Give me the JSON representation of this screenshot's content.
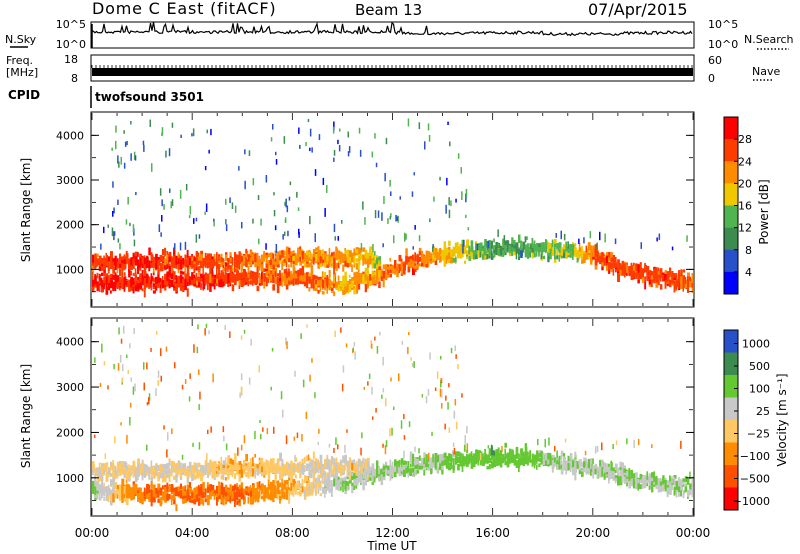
{
  "header": {
    "station": "Dome C East (fitACF)",
    "beam": "Beam 13",
    "date": "07/Apr/2015"
  },
  "nsky_panel": {
    "label": "N.Sky",
    "left_ticks": [
      "10^5",
      "10^0"
    ],
    "right_ticks": [
      "10^5",
      "10^0"
    ],
    "right_label": "N.Search"
  },
  "freq_panel": {
    "label_line1": "Freq.",
    "label_line2": "[MHz]",
    "left_ticks": [
      "18",
      "8"
    ],
    "right_ticks": [
      "60",
      "0"
    ],
    "right_label": "Nave"
  },
  "cpid_panel": {
    "label": "CPID",
    "value": "twofsound 3501"
  },
  "colors": {
    "power_scale": [
      "#0000ff",
      "#2850c8",
      "#3c8c50",
      "#50b450",
      "#f0c800",
      "#ff8c00",
      "#ff3c00",
      "#ff0000"
    ],
    "velocity_scale": [
      "#ff0000",
      "#ff5000",
      "#ff8c00",
      "#ffc864",
      "#c8c8c8",
      "#64c832",
      "#3c8c50",
      "#2850c8"
    ]
  },
  "chart_data": [
    {
      "type": "heatmap",
      "name": "power",
      "title": "",
      "xlabel": "",
      "ylabel": "Slant Range [km]",
      "yticks": [
        "4000",
        "3000",
        "2000",
        "1000"
      ],
      "xlim": [
        "00:00",
        "24:00"
      ],
      "ylim": [
        180,
        4500
      ],
      "colorbar_label": "Power [dB]",
      "colorbar_ticks": [
        "28",
        "24",
        "20",
        "16",
        "12",
        "8",
        "4"
      ],
      "colorbar_range": [
        0,
        32
      ],
      "series": [
        {
          "hours": [
            0,
            2,
            4,
            6,
            8,
            9,
            10,
            11,
            12,
            13,
            14,
            15,
            16,
            17,
            18,
            19,
            20,
            21,
            22,
            23,
            24
          ],
          "center_km": [
            700,
            700,
            750,
            800,
            800,
            700,
            650,
            800,
            1000,
            1200,
            1350,
            1400,
            1450,
            1450,
            1450,
            1400,
            1300,
            1050,
            900,
            800,
            700
          ],
          "power_db": [
            28,
            28,
            28,
            26,
            24,
            24,
            20,
            22,
            24,
            24,
            20,
            16,
            12,
            12,
            14,
            16,
            24,
            26,
            26,
            26,
            24
          ]
        },
        {
          "hours": [
            0,
            2,
            4,
            6,
            8,
            10,
            11,
            11.5
          ],
          "center_km": [
            1150,
            1150,
            1150,
            1200,
            1250,
            1250,
            1250,
            1150
          ],
          "power_db": [
            26,
            28,
            26,
            24,
            22,
            22,
            20,
            16
          ]
        }
      ]
    },
    {
      "type": "heatmap",
      "name": "velocity",
      "title": "",
      "xlabel": "Time UT",
      "ylabel": "Slant Range [km]",
      "xticks": [
        "00:00",
        "04:00",
        "08:00",
        "12:00",
        "16:00",
        "20:00",
        "00:00"
      ],
      "yticks": [
        "4000",
        "3000",
        "2000",
        "1000"
      ],
      "xlim": [
        "00:00",
        "24:00"
      ],
      "ylim": [
        180,
        4500
      ],
      "colorbar_label": "Velocity [m s⁻¹]",
      "colorbar_ticks": [
        "1000",
        "500",
        "100",
        "25",
        "−25",
        "−100",
        "−500",
        "−1000"
      ],
      "colorbar_range": [
        -1000,
        1000
      ],
      "series": [
        {
          "hours": [
            0,
            2,
            4,
            6,
            8,
            10,
            12,
            14,
            16,
            18,
            20,
            22,
            24
          ],
          "center_km": [
            700,
            650,
            650,
            650,
            750,
            900,
            1200,
            1350,
            1450,
            1400,
            1200,
            900,
            800
          ],
          "velocity_ms": [
            100,
            -100,
            -100,
            -100,
            -25,
            100,
            100,
            100,
            500,
            100,
            100,
            100,
            100
          ]
        },
        {
          "hours": [
            0,
            2,
            4,
            6,
            8,
            10,
            11
          ],
          "center_km": [
            1150,
            1150,
            1150,
            1200,
            1200,
            1250,
            1200
          ],
          "velocity_ms": [
            25,
            25,
            25,
            -25,
            25,
            25,
            25
          ]
        }
      ]
    }
  ]
}
